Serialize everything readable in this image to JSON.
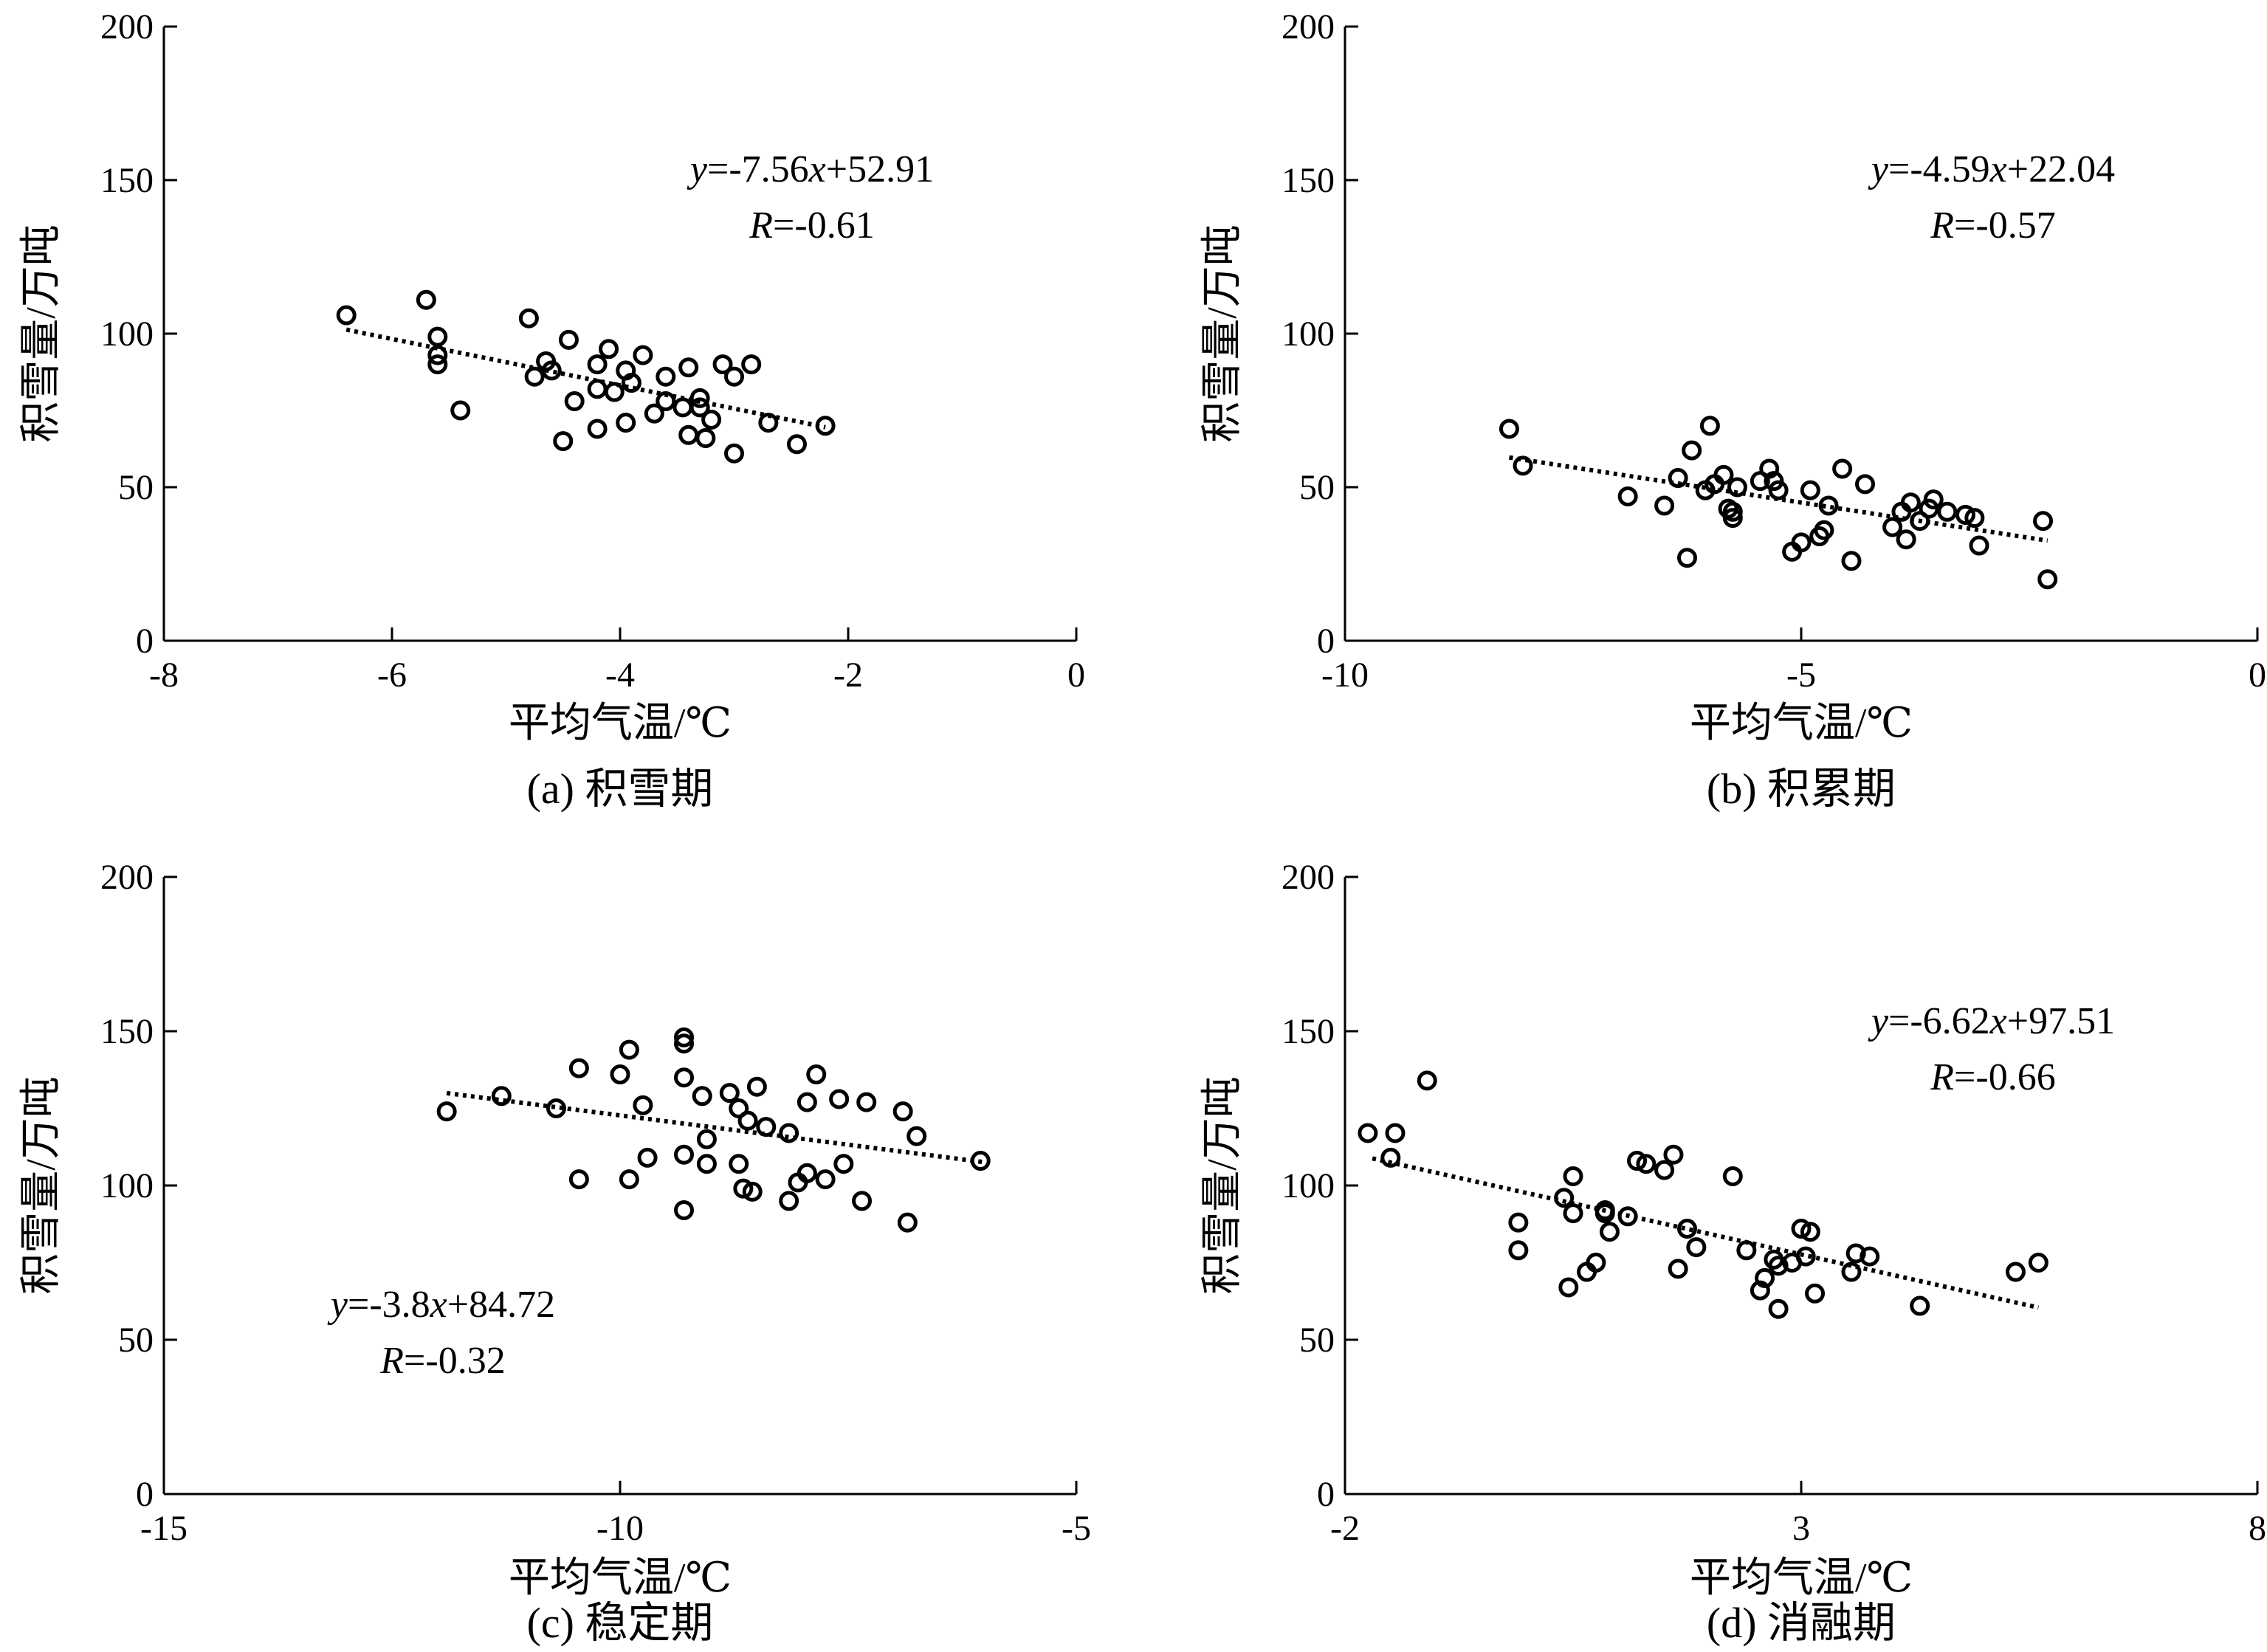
{
  "chart_data": [
    {
      "type": "scatter",
      "xlabel": "平均气温/℃",
      "ylabel": "积雪量/万吨",
      "caption": "(a) 积雪期",
      "xlim": [
        -8,
        0
      ],
      "ylim": [
        0,
        200
      ],
      "xticks": [
        "-8",
        "-6",
        "-4",
        "-2",
        "0"
      ],
      "yticks": [
        "0",
        "50",
        "100",
        "150",
        "200"
      ],
      "equation": {
        "lhs": "y",
        "text": "=-7.56",
        "var": "x",
        "rest": "+52.91"
      },
      "r": {
        "lhs": "R",
        "text": "=-0.61"
      },
      "trend": {
        "slope": -7.56,
        "intercept": 52.91,
        "x_range": [
          -6.4,
          -2.2
        ]
      },
      "points": [
        [
          -6.4,
          106
        ],
        [
          -5.7,
          111
        ],
        [
          -5.6,
          99
        ],
        [
          -5.6,
          93
        ],
        [
          -5.6,
          90
        ],
        [
          -5.4,
          75
        ],
        [
          -4.8,
          105
        ],
        [
          -4.75,
          86
        ],
        [
          -4.65,
          91
        ],
        [
          -4.6,
          88
        ],
        [
          -4.5,
          65
        ],
        [
          -4.45,
          98
        ],
        [
          -4.4,
          78
        ],
        [
          -4.2,
          82
        ],
        [
          -4.2,
          90
        ],
        [
          -4.2,
          69
        ],
        [
          -4.1,
          95
        ],
        [
          -4.05,
          81
        ],
        [
          -3.95,
          88
        ],
        [
          -3.95,
          71
        ],
        [
          -3.9,
          84
        ],
        [
          -3.8,
          93
        ],
        [
          -3.7,
          74
        ],
        [
          -3.6,
          86
        ],
        [
          -3.6,
          78
        ],
        [
          -3.45,
          76
        ],
        [
          -3.4,
          89
        ],
        [
          -3.4,
          67
        ],
        [
          -3.3,
          79
        ],
        [
          -3.3,
          76
        ],
        [
          -3.25,
          66
        ],
        [
          -3.2,
          72
        ],
        [
          -3.1,
          90
        ],
        [
          -3.0,
          61
        ],
        [
          -3.0,
          86
        ],
        [
          -2.85,
          90
        ],
        [
          -2.7,
          71
        ],
        [
          -2.45,
          64
        ],
        [
          -2.2,
          70
        ]
      ]
    },
    {
      "type": "scatter",
      "xlabel": "平均气温/℃",
      "ylabel": "积雪量/万吨",
      "caption": "(b) 积累期",
      "xlim": [
        -10,
        0
      ],
      "ylim": [
        0,
        200
      ],
      "xticks": [
        "-10",
        "-5",
        "0"
      ],
      "yticks": [
        "0",
        "50",
        "100",
        "150",
        "200"
      ],
      "equation": {
        "lhs": "y",
        "text": "=-4.59",
        "var": "x",
        "rest": "+22.04"
      },
      "r": {
        "lhs": "R",
        "text": "=-0.57"
      },
      "trend": {
        "slope": -4.59,
        "intercept": 22.04,
        "x_range": [
          -8.2,
          -2.3
        ]
      },
      "points": [
        [
          -8.2,
          69
        ],
        [
          -8.05,
          57
        ],
        [
          -6.9,
          47
        ],
        [
          -6.5,
          44
        ],
        [
          -6.35,
          53
        ],
        [
          -6.25,
          27
        ],
        [
          -6.2,
          62
        ],
        [
          -6.05,
          49
        ],
        [
          -6.0,
          70
        ],
        [
          -5.95,
          51
        ],
        [
          -5.85,
          54
        ],
        [
          -5.8,
          43
        ],
        [
          -5.75,
          42
        ],
        [
          -5.75,
          40
        ],
        [
          -5.7,
          50
        ],
        [
          -5.45,
          52
        ],
        [
          -5.35,
          56
        ],
        [
          -5.3,
          52
        ],
        [
          -5.25,
          49
        ],
        [
          -5.1,
          29
        ],
        [
          -5.0,
          32
        ],
        [
          -4.9,
          49
        ],
        [
          -4.8,
          34
        ],
        [
          -4.75,
          36
        ],
        [
          -4.7,
          44
        ],
        [
          -4.55,
          56
        ],
        [
          -4.45,
          26
        ],
        [
          -4.3,
          51
        ],
        [
          -4.0,
          37
        ],
        [
          -3.9,
          42
        ],
        [
          -3.85,
          33
        ],
        [
          -3.8,
          45
        ],
        [
          -3.7,
          39
        ],
        [
          -3.6,
          43
        ],
        [
          -3.55,
          46
        ],
        [
          -3.4,
          42
        ],
        [
          -3.2,
          41
        ],
        [
          -3.1,
          40
        ],
        [
          -3.05,
          31
        ],
        [
          -2.35,
          39
        ],
        [
          -2.3,
          20
        ]
      ]
    },
    {
      "type": "scatter",
      "xlabel": "平均气温/℃",
      "ylabel": "积雪量/万吨",
      "caption": "(c) 稳定期",
      "xlim": [
        -15,
        -5
      ],
      "ylim": [
        0,
        200
      ],
      "xticks": [
        "-15",
        "-10",
        "-5"
      ],
      "yticks": [
        "0",
        "50",
        "100",
        "150",
        "200"
      ],
      "equation": {
        "lhs": "y",
        "text": "=-3.8",
        "var": "x",
        "rest": "+84.72"
      },
      "r": {
        "lhs": "R",
        "text": "=-0.32"
      },
      "trend": {
        "slope": -3.8,
        "intercept": 84.72,
        "x_range": [
          -11.9,
          -6.0
        ]
      },
      "points": [
        [
          -11.9,
          124
        ],
        [
          -11.3,
          129
        ],
        [
          -10.7,
          125
        ],
        [
          -10.45,
          102
        ],
        [
          -10.45,
          138
        ],
        [
          -10.0,
          136
        ],
        [
          -9.9,
          144
        ],
        [
          -9.9,
          102
        ],
        [
          -9.75,
          126
        ],
        [
          -9.7,
          109
        ],
        [
          -9.3,
          110
        ],
        [
          -9.3,
          148
        ],
        [
          -9.3,
          146
        ],
        [
          -9.3,
          135
        ],
        [
          -9.3,
          92
        ],
        [
          -9.1,
          129
        ],
        [
          -9.05,
          115
        ],
        [
          -9.05,
          107
        ],
        [
          -8.8,
          130
        ],
        [
          -8.7,
          125
        ],
        [
          -8.7,
          107
        ],
        [
          -8.65,
          99
        ],
        [
          -8.6,
          121
        ],
        [
          -8.55,
          98
        ],
        [
          -8.5,
          132
        ],
        [
          -8.4,
          119
        ],
        [
          -8.15,
          117
        ],
        [
          -8.15,
          95
        ],
        [
          -8.05,
          101
        ],
        [
          -7.95,
          104
        ],
        [
          -7.95,
          127
        ],
        [
          -7.85,
          136
        ],
        [
          -7.75,
          102
        ],
        [
          -7.6,
          128
        ],
        [
          -7.55,
          107
        ],
        [
          -7.35,
          95
        ],
        [
          -7.3,
          127
        ],
        [
          -6.9,
          124
        ],
        [
          -6.85,
          88
        ],
        [
          -6.75,
          116
        ],
        [
          -6.05,
          108
        ]
      ]
    },
    {
      "type": "scatter",
      "xlabel": "平均气温/℃",
      "ylabel": "积雪量/万吨",
      "caption": "(d) 消融期",
      "xlim": [
        -2,
        8
      ],
      "ylim": [
        0,
        200
      ],
      "xticks": [
        "-2",
        "3",
        "8"
      ],
      "yticks": [
        "0",
        "50",
        "100",
        "150",
        "200"
      ],
      "equation": {
        "lhs": "y",
        "text": "=-6.62",
        "var": "x",
        "rest": "+97.51"
      },
      "r": {
        "lhs": "R",
        "text": "=-0.66"
      },
      "trend": {
        "slope": -6.62,
        "intercept": 97.51,
        "x_range": [
          -1.7,
          5.6
        ]
      },
      "points": [
        [
          -1.75,
          117
        ],
        [
          -1.5,
          109
        ],
        [
          -1.45,
          117
        ],
        [
          -1.1,
          134
        ],
        [
          -0.1,
          88
        ],
        [
          -0.1,
          79
        ],
        [
          0.4,
          96
        ],
        [
          0.45,
          67
        ],
        [
          0.5,
          103
        ],
        [
          0.5,
          91
        ],
        [
          0.65,
          72
        ],
        [
          0.75,
          75
        ],
        [
          0.85,
          92
        ],
        [
          0.85,
          91
        ],
        [
          0.9,
          85
        ],
        [
          1.1,
          90
        ],
        [
          1.2,
          108
        ],
        [
          1.3,
          107
        ],
        [
          1.5,
          105
        ],
        [
          1.6,
          110
        ],
        [
          1.65,
          73
        ],
        [
          1.75,
          86
        ],
        [
          1.85,
          80
        ],
        [
          2.25,
          103
        ],
        [
          2.4,
          79
        ],
        [
          2.55,
          66
        ],
        [
          2.6,
          70
        ],
        [
          2.7,
          76
        ],
        [
          2.75,
          74
        ],
        [
          2.75,
          60
        ],
        [
          2.9,
          75
        ],
        [
          3.0,
          86
        ],
        [
          3.05,
          77
        ],
        [
          3.1,
          85
        ],
        [
          3.15,
          65
        ],
        [
          3.55,
          72
        ],
        [
          3.6,
          78
        ],
        [
          3.75,
          77
        ],
        [
          4.3,
          61
        ],
        [
          5.35,
          72
        ],
        [
          5.6,
          75
        ]
      ]
    }
  ]
}
